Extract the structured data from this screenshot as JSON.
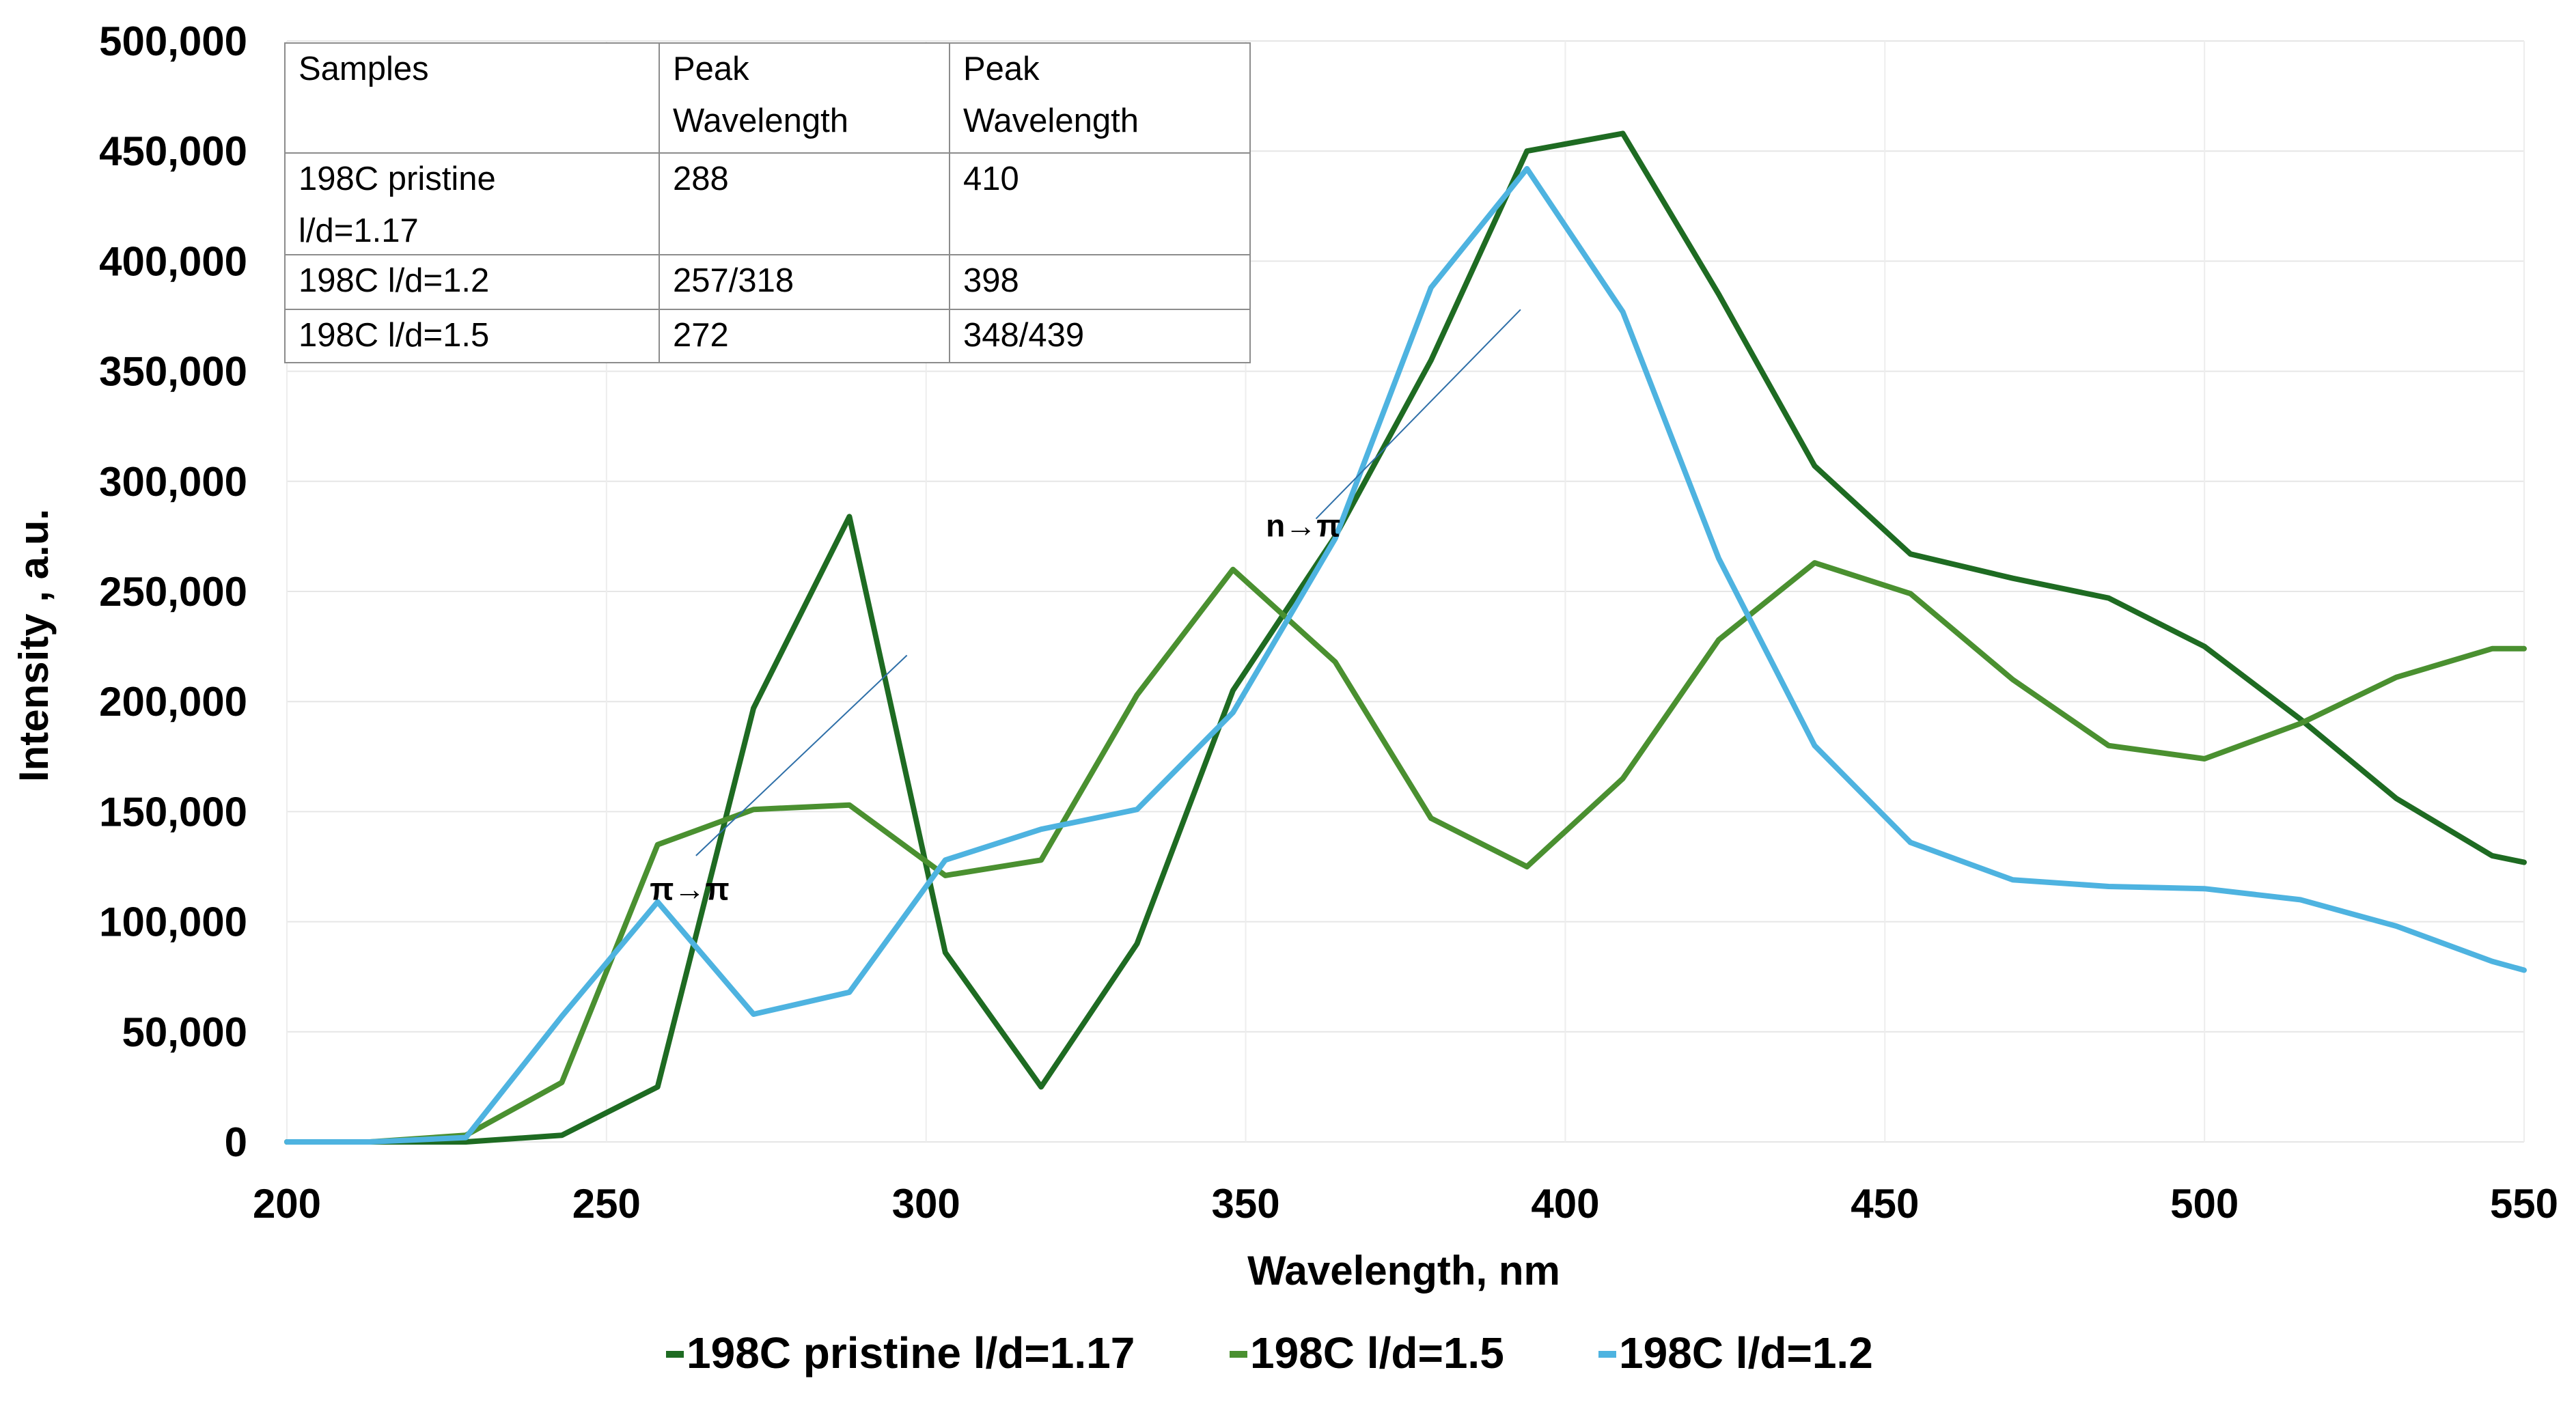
{
  "chart_data": {
    "type": "line",
    "xlabel": "Wavelength, nm",
    "ylabel": "Intensity , a.u.",
    "xlim": [
      200,
      550
    ],
    "ylim": [
      0,
      500000
    ],
    "x_ticks": [
      200,
      250,
      300,
      350,
      400,
      450,
      500,
      550
    ],
    "x_tick_labels": [
      "200",
      "250",
      "300",
      "350",
      "400",
      "450",
      "500",
      "550"
    ],
    "y_ticks": [
      0,
      50000,
      100000,
      150000,
      200000,
      250000,
      300000,
      350000,
      400000,
      450000,
      500000
    ],
    "y_tick_labels": [
      "0",
      "50,000",
      "100,000",
      "150,000",
      "200,000",
      "250,000",
      "300,000",
      "350,000",
      "400,000",
      "450,000",
      "500,000"
    ],
    "grid": true,
    "legend_position": "bottom",
    "x": [
      200,
      213,
      228,
      243,
      258,
      273,
      288,
      303,
      318,
      333,
      348,
      364,
      379,
      394,
      409,
      424,
      439,
      454,
      470,
      485,
      500,
      515,
      530,
      545,
      550
    ],
    "series": [
      {
        "name": "198C pristine l/d=1.17",
        "color": "#1e6b22",
        "values": [
          0,
          0,
          0,
          3000,
          25000,
          197000,
          284000,
          86000,
          25000,
          90000,
          205000,
          275000,
          355000,
          450000,
          458000,
          385000,
          307000,
          267000,
          256000,
          247000,
          225000,
          192000,
          156000,
          130000,
          127000
        ]
      },
      {
        "name": "198C l/d=1.5",
        "color": "#4a9030",
        "values": [
          0,
          0,
          3000,
          27000,
          135000,
          151000,
          153000,
          121000,
          128000,
          203000,
          260000,
          218000,
          147000,
          125000,
          165000,
          228000,
          263000,
          249000,
          210000,
          180000,
          174000,
          190000,
          211000,
          224000,
          224000
        ]
      },
      {
        "name": "198C l/d=1.2",
        "color": "#4eb3e0",
        "values": [
          0,
          0,
          2000,
          57000,
          109000,
          58000,
          68000,
          128000,
          142000,
          151000,
          195000,
          274000,
          388000,
          442000,
          377000,
          265000,
          180000,
          136000,
          119000,
          116000,
          115000,
          110000,
          98000,
          82000,
          78000
        ]
      }
    ],
    "annotations": [
      {
        "text": "π→π",
        "x": 263,
        "y": 110000,
        "line_from": [
          264,
          130000
        ],
        "line_to": [
          297,
          221000
        ]
      },
      {
        "text": "n→π",
        "x": 359,
        "y": 275000,
        "line_from": [
          361,
          283000
        ],
        "line_to": [
          393,
          378000
        ]
      }
    ]
  },
  "table": {
    "header": [
      "Samples",
      "Peak\nWavelength",
      "Peak\nWavelength"
    ],
    "rows": [
      [
        "198C pristine\nl/d=1.17",
        "288",
        "410"
      ],
      [
        "198C l/d=1.2",
        "257/318",
        "398"
      ],
      [
        "198C l/d=1.5",
        "272",
        "348/439"
      ]
    ]
  }
}
